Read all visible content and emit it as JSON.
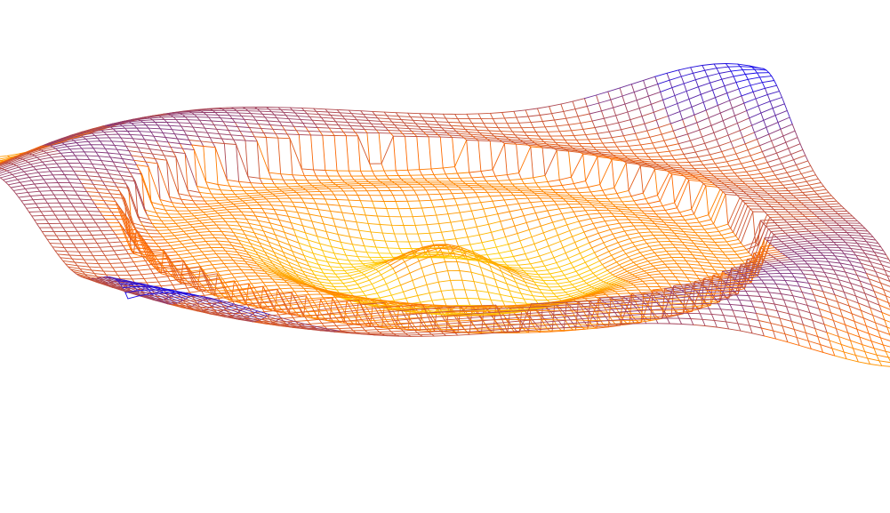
{
  "scene": {
    "background": "#ffffff",
    "colormap": {
      "high": "#0000ff",
      "mid": "#ff6a00",
      "low": "#ffff00"
    },
    "render_style": "wireframe-mesh"
  }
}
